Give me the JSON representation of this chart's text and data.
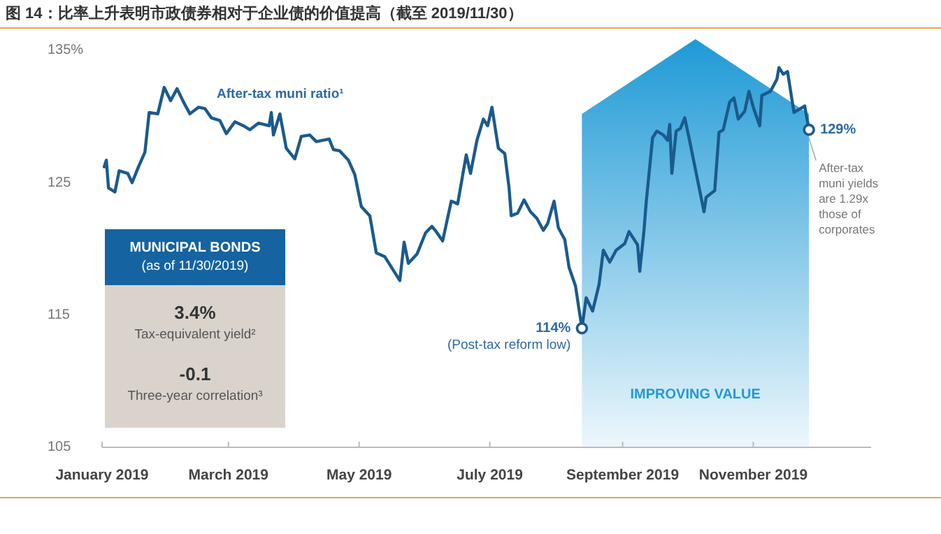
{
  "chart_data": {
    "type": "line",
    "title": "图 14：比率上升表明市政债券相对于企业债的价值提高（截至 2019/11/30）",
    "xlim": [
      "2019-01-01",
      "2019-12-26"
    ],
    "xticks": [
      {
        "value": "2019-01-01",
        "label": "January 2019"
      },
      {
        "value": "2019-03-01",
        "label": "March 2019"
      },
      {
        "value": "2019-05-01",
        "label": "May 2019"
      },
      {
        "value": "2019-07-01",
        "label": "July 2019"
      },
      {
        "value": "2019-09-01",
        "label": "September 2019"
      },
      {
        "value": "2019-11-01",
        "label": "November 2019"
      }
    ],
    "ylim": [
      105,
      135
    ],
    "yticks": [
      {
        "value": 105,
        "label": "105"
      },
      {
        "value": 115,
        "label": "115"
      },
      {
        "value": 125,
        "label": "125"
      },
      {
        "value": 135,
        "label": "135%"
      }
    ],
    "bands": [
      {
        "axis": "x",
        "from": "2019-08-13",
        "to": "2019-11-27",
        "label": "IMPROVING VALUE",
        "color": "#1f9ad6"
      }
    ],
    "series": [
      {
        "name": "After-tax muni ratio¹",
        "color": "#1b5a8c",
        "x": [
          "2019-01-02",
          "2019-01-03",
          "2019-01-04",
          "2019-01-07",
          "2019-01-09",
          "2019-01-13",
          "2019-01-15",
          "2019-01-18",
          "2019-01-21",
          "2019-01-23",
          "2019-01-27",
          "2019-01-30",
          "2019-02-02",
          "2019-02-05",
          "2019-02-08",
          "2019-02-11",
          "2019-02-15",
          "2019-02-18",
          "2019-02-21",
          "2019-02-25",
          "2019-02-28",
          "2019-03-04",
          "2019-03-08",
          "2019-03-11",
          "2019-03-15",
          "2019-03-20",
          "2019-03-21",
          "2019-03-22",
          "2019-03-25",
          "2019-03-28",
          "2019-04-01",
          "2019-04-04",
          "2019-04-08",
          "2019-04-11",
          "2019-04-17",
          "2019-04-19",
          "2019-04-22",
          "2019-04-26",
          "2019-04-29",
          "2019-05-02",
          "2019-05-06",
          "2019-05-09",
          "2019-05-13",
          "2019-05-20",
          "2019-05-22",
          "2019-05-24",
          "2019-05-28",
          "2019-06-01",
          "2019-06-04",
          "2019-06-06",
          "2019-06-09",
          "2019-06-13",
          "2019-06-16",
          "2019-06-20",
          "2019-06-22",
          "2019-06-25",
          "2019-06-28",
          "2019-06-30",
          "2019-07-02",
          "2019-07-05",
          "2019-07-08",
          "2019-07-10",
          "2019-07-11",
          "2019-07-14",
          "2019-07-17",
          "2019-07-20",
          "2019-07-23",
          "2019-07-26",
          "2019-07-28",
          "2019-07-31",
          "2019-08-02",
          "2019-08-05",
          "2019-08-07",
          "2019-08-10",
          "2019-08-13",
          "2019-08-15",
          "2019-08-18",
          "2019-08-21",
          "2019-08-23",
          "2019-08-26",
          "2019-08-29",
          "2019-09-02",
          "2019-09-04",
          "2019-09-08",
          "2019-09-09",
          "2019-09-11",
          "2019-09-12",
          "2019-09-15",
          "2019-09-17",
          "2019-09-20",
          "2019-09-22",
          "2019-09-23",
          "2019-09-24",
          "2019-09-26",
          "2019-09-28",
          "2019-09-30",
          "2019-10-02",
          "2019-10-05",
          "2019-10-09",
          "2019-10-10",
          "2019-10-14",
          "2019-10-16",
          "2019-10-18",
          "2019-10-21",
          "2019-10-23",
          "2019-10-25",
          "2019-10-28",
          "2019-10-30",
          "2019-11-01",
          "2019-11-04",
          "2019-11-05",
          "2019-11-09",
          "2019-11-12",
          "2019-11-13",
          "2019-11-15",
          "2019-11-17",
          "2019-11-20",
          "2019-11-23",
          "2019-11-25",
          "2019-11-27"
        ],
        "values": [
          126.2,
          126.7,
          124.6,
          124.3,
          125.9,
          125.7,
          125.0,
          126.2,
          127.3,
          130.3,
          130.2,
          132.2,
          131.2,
          132.1,
          131.1,
          130.2,
          130.7,
          130.6,
          129.9,
          129.7,
          128.7,
          129.6,
          129.3,
          129.0,
          129.5,
          129.3,
          130.3,
          128.6,
          130.2,
          127.6,
          126.8,
          128.5,
          128.6,
          128.1,
          128.3,
          127.5,
          127.4,
          126.7,
          125.6,
          123.2,
          122.5,
          119.7,
          119.4,
          117.6,
          120.5,
          118.9,
          119.6,
          121.2,
          121.7,
          121.3,
          120.6,
          123.6,
          123.4,
          127.1,
          125.7,
          128.2,
          129.8,
          129.3,
          130.7,
          127.6,
          127.2,
          124.6,
          122.5,
          122.7,
          123.7,
          122.8,
          122.3,
          121.4,
          121.9,
          123.6,
          121.6,
          120.7,
          118.6,
          117.2,
          114.0,
          116.3,
          115.3,
          117.3,
          119.9,
          119.0,
          119.9,
          120.4,
          121.3,
          120.3,
          118.3,
          121.4,
          123.5,
          128.4,
          128.9,
          128.6,
          128.2,
          129.4,
          125.7,
          128.9,
          129.1,
          129.9,
          128.4,
          126.0,
          122.8,
          123.9,
          124.4,
          128.8,
          129.0,
          131.1,
          131.4,
          129.8,
          130.4,
          131.9,
          130.7,
          129.3,
          131.6,
          131.9,
          132.8,
          133.7,
          133.2,
          133.4,
          130.3,
          130.6,
          130.8,
          129.0
        ]
      }
    ],
    "annotations": [
      "MUNICIPAL BONDS",
      "(as of 11/30/2019)",
      "3.4%",
      "Tax-equivalent yield²",
      "-0.1",
      "Three-year correlation³",
      {
        "text": "114%",
        "x": "2019-08-13",
        "y": 114
      },
      {
        "text": "(Post-tax reform low)",
        "x": "2019-08-13",
        "y": 114
      },
      {
        "text": "129%",
        "x": "2019-11-27",
        "y": 129
      },
      {
        "text": "After-tax muni yields are 1.29x those of corporates",
        "x": "2019-11-27",
        "y": 129
      }
    ]
  }
}
